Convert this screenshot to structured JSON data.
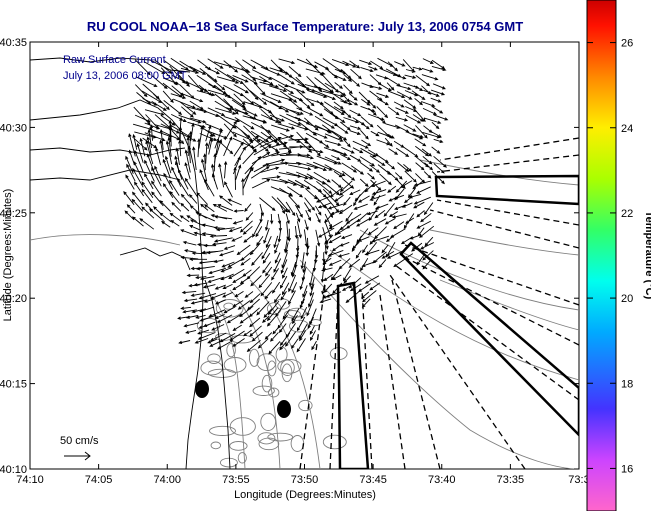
{
  "chart_data": {
    "type": "vector-field-map",
    "title": "RU COOL  NOAA−18  Sea Surface Temperature:  July 13, 2006 0754 GMT",
    "xlabel": "Longitude (Degrees:Minutes)",
    "ylabel": "Latitude (Degrees:Minutes)",
    "x_ticks": [
      "74:10",
      "74:05",
      "74:00",
      "73:55",
      "73:50",
      "73:45",
      "73:40",
      "73:35",
      "73:3"
    ],
    "y_ticks": [
      "40:35",
      "40:30",
      "40:25",
      "40:20",
      "40:15",
      "40:10"
    ],
    "legend": [
      "Raw Surface Current",
      "July 13, 2006 08:00 GMT"
    ],
    "scale_label": "50 cm/s",
    "colorbar": {
      "label": "Temperature (°C)",
      "ticks": [
        "26",
        "24",
        "22",
        "20",
        "18",
        "16"
      ],
      "range": [
        15,
        27
      ]
    },
    "colors": {
      "title": "#00008b",
      "vectors": "#000000",
      "coastline": "#000000",
      "contours": "#7f7f7f"
    }
  }
}
